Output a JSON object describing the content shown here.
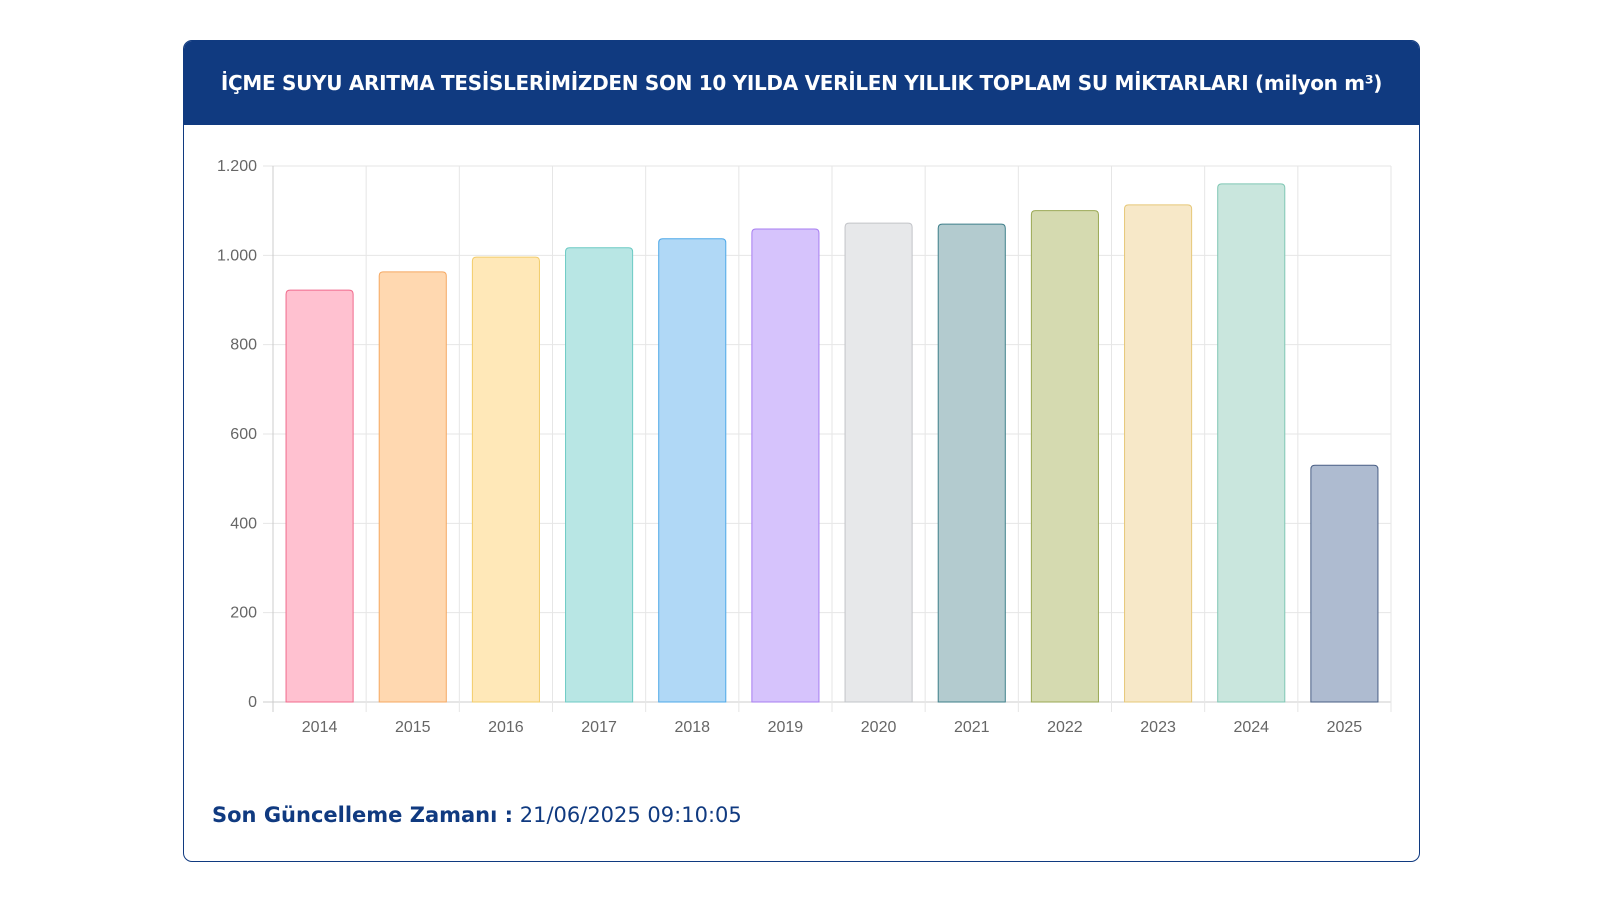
{
  "header": {
    "title": "İÇME SUYU ARITMA TESİSLERİMİZDEN SON 10 YILDA VERİLEN YILLIK TOPLAM SU MİKTARLARI (milyon m³)"
  },
  "footer": {
    "label": "Son Güncelleme Zamanı :",
    "value": "21/06/2025 09:10:05"
  },
  "chart_data": {
    "type": "bar",
    "title": "İÇME SUYU ARITMA TESİSLERİMİZDEN SON 10 YILDA VERİLEN YILLIK TOPLAM SU MİKTARLARI (milyon m³)",
    "xlabel": "",
    "ylabel": "",
    "categories": [
      "2014",
      "2015",
      "2016",
      "2017",
      "2018",
      "2019",
      "2020",
      "2021",
      "2022",
      "2023",
      "2024",
      "2025"
    ],
    "values": [
      922,
      963,
      996,
      1017,
      1037,
      1059,
      1072,
      1070,
      1100,
      1113,
      1160,
      530
    ],
    "ylim": [
      0,
      1200
    ],
    "yticks": [
      0,
      200,
      400,
      600,
      800,
      1000,
      1200
    ],
    "ytick_labels": [
      "0",
      "200",
      "400",
      "600",
      "800",
      "1.000",
      "1.200"
    ],
    "grid": true,
    "legend": "none",
    "colors": {
      "fill": [
        "#ffc1d0",
        "#ffd8b0",
        "#ffe8b8",
        "#b8e6e4",
        "#b0d8f6",
        "#d6c3fc",
        "#e7e8ea",
        "#b3cbcf",
        "#d5dab0",
        "#f7e8c8",
        "#c9e6dd",
        "#aebbd0"
      ],
      "border": [
        "#f06a8c",
        "#f5a862",
        "#f2cc6a",
        "#6ccac4",
        "#4ea8e8",
        "#a77ef0",
        "#c2c4c8",
        "#3e7f8a",
        "#9aa854",
        "#e6c878",
        "#7fc7b4",
        "#4a5f85"
      ]
    }
  }
}
